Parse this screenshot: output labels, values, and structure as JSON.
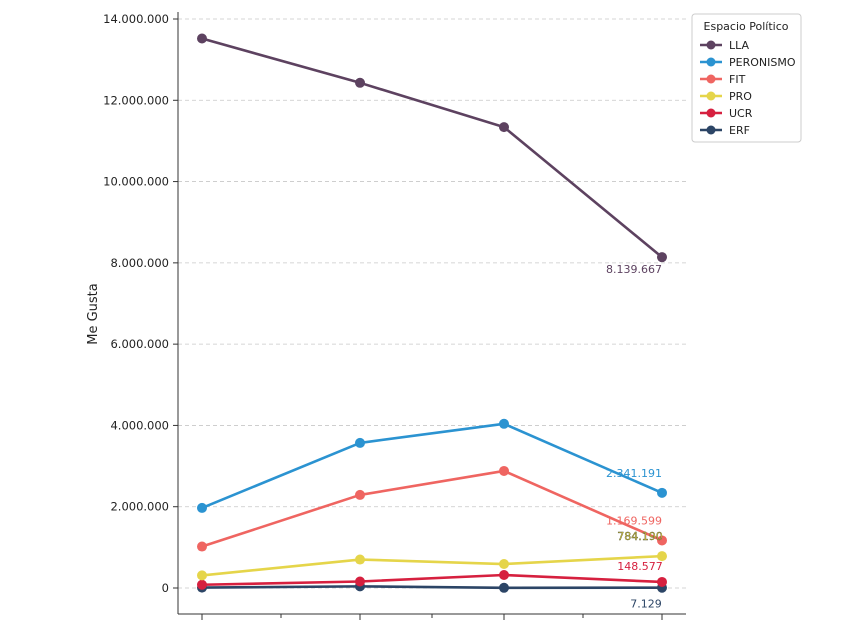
{
  "chart_data": {
    "type": "line",
    "xlabel": "",
    "ylabel": "Me Gusta",
    "ylim": [
      -600000,
      14300000
    ],
    "y_ticks": [
      0,
      2000000,
      4000000,
      6000000,
      8000000,
      10000000,
      12000000,
      14000000
    ],
    "y_tick_labels": [
      "0",
      "2.000.000",
      "4.000.000",
      "6.000.000",
      "8.000.000",
      "10.000.000",
      "12.000.000",
      "14.000.000"
    ],
    "x": [
      0,
      1,
      2,
      3
    ],
    "grid": "horizontal dashed",
    "legend": {
      "title": "Espacio Político",
      "placement": "upper right outside"
    },
    "series": [
      {
        "name": "LLA",
        "color": "#5d4260",
        "values": [
          13520000,
          12430000,
          11340000,
          8139667
        ],
        "last_label": "8.139.667"
      },
      {
        "name": "PERONISMO",
        "color": "#2b93d1",
        "values": [
          1970000,
          3570000,
          4040000,
          2341191
        ],
        "last_label": "2.341.191"
      },
      {
        "name": "FIT",
        "color": "#ef6561",
        "values": [
          1020000,
          2290000,
          2880000,
          1169599
        ],
        "last_label": "1.169.599"
      },
      {
        "name": "PRO",
        "color": "#e5d54a",
        "values": [
          310000,
          700000,
          590000,
          784190
        ],
        "last_label": "784.190"
      },
      {
        "name": "UCR",
        "color": "#d6203f",
        "values": [
          80000,
          160000,
          320000,
          148577
        ],
        "last_label": "148.577"
      },
      {
        "name": "ERF",
        "color": "#2c4566",
        "values": [
          10000,
          40000,
          5000,
          7129
        ],
        "last_label": "7.129"
      }
    ]
  }
}
